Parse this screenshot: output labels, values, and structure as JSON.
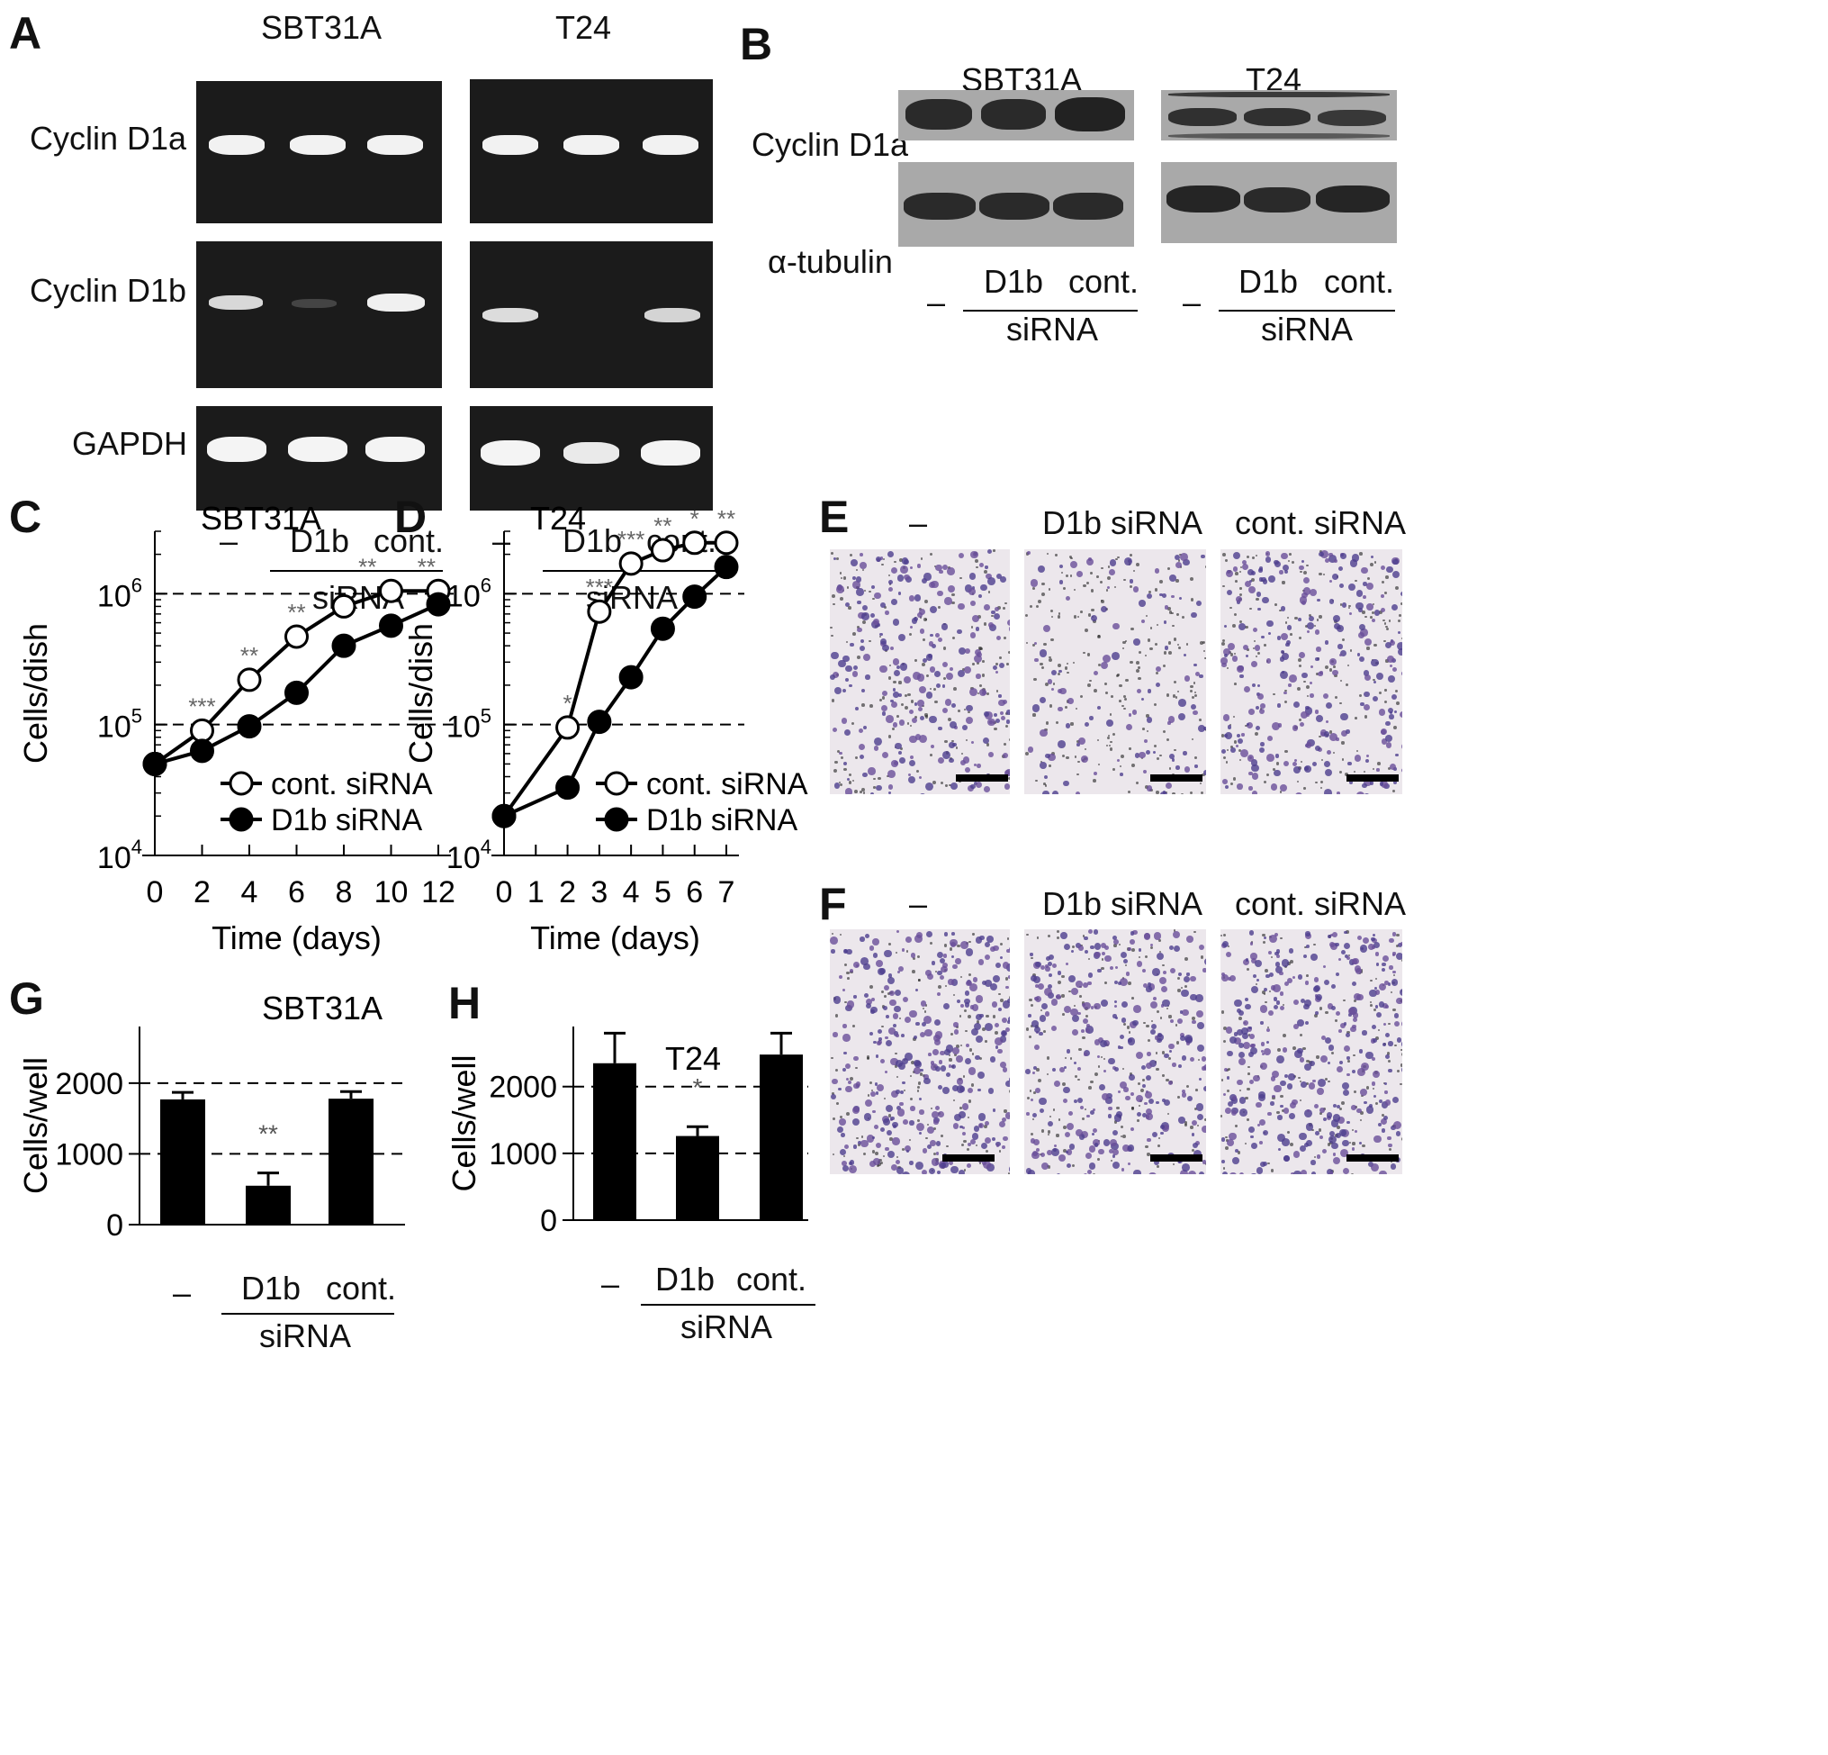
{
  "panels": {
    "A": "A",
    "B": "B",
    "C": "C",
    "D": "D",
    "E": "E",
    "F": "F",
    "G": "G",
    "H": "H"
  },
  "cell_lines": {
    "sbt": "SBT31A",
    "t24": "T24"
  },
  "gel_rows": {
    "d1a": "Cyclin D1a",
    "d1b": "Cyclin D1b",
    "gapdh": "GAPDH"
  },
  "blot_rows": {
    "d1a": "Cyclin D1a",
    "tub": "α-tubulin"
  },
  "lanes": {
    "none": "–",
    "d1b": "D1b",
    "cont": "cont.",
    "sirna": "siRNA"
  },
  "micro_labels": {
    "none": "–",
    "d1b": "D1b siRNA",
    "cont": "cont. siRNA"
  },
  "colors": {
    "band": "#f2f2f2",
    "gel_bg": "#1b1b1b",
    "blot_bg": "#a9a9a9",
    "blot_band": "#2a2a2a",
    "stain": "#4d3f8f",
    "stain_bg": "#ece7ec"
  },
  "chart_data": [
    {
      "panel": "C",
      "type": "line",
      "title": "SBT31A",
      "xlabel": "Time (days)",
      "ylabel": "Cells/dish",
      "yscale": "log",
      "ylim": [
        10000,
        3000000
      ],
      "xlim": [
        0,
        12
      ],
      "xticks": [
        0,
        2,
        4,
        6,
        8,
        10,
        12
      ],
      "yticks": [
        10000,
        100000,
        1000000
      ],
      "ytick_labels": [
        {
          "base": "10",
          "exp": "4"
        },
        {
          "base": "10",
          "exp": "5"
        },
        {
          "base": "10",
          "exp": "6"
        }
      ],
      "grid_y": [
        100000,
        1000000
      ],
      "legend": "bottom-right",
      "series": [
        {
          "name": "cont. siRNA",
          "marker": "open-circle",
          "x": [
            0,
            2,
            4,
            6,
            8,
            10,
            12
          ],
          "y": [
            50000,
            90000,
            220000,
            470000,
            800000,
            1050000,
            1050000
          ]
        },
        {
          "name": "D1b siRNA",
          "marker": "filled-circle",
          "x": [
            0,
            2,
            4,
            6,
            8,
            10,
            12
          ],
          "y": [
            50000,
            63000,
            97000,
            175000,
            400000,
            570000,
            830000
          ]
        }
      ],
      "annotations": [
        {
          "x": 2,
          "text": "***"
        },
        {
          "x": 4,
          "text": "**"
        },
        {
          "x": 6,
          "text": "**"
        },
        {
          "x": 9,
          "text": "**"
        },
        {
          "x": 11.5,
          "text": "**"
        }
      ]
    },
    {
      "panel": "D",
      "type": "line",
      "title": "T24",
      "xlabel": "Time (days)",
      "ylabel": "Cells/dish",
      "yscale": "log",
      "ylim": [
        10000,
        3000000
      ],
      "xlim": [
        0,
        7
      ],
      "xticks": [
        0,
        1,
        2,
        3,
        4,
        5,
        6,
        7
      ],
      "yticks": [
        10000,
        100000,
        1000000
      ],
      "ytick_labels": [
        {
          "base": "10",
          "exp": "4"
        },
        {
          "base": "10",
          "exp": "5"
        },
        {
          "base": "10",
          "exp": "6"
        }
      ],
      "grid_y": [
        100000,
        1000000
      ],
      "legend": "bottom-right",
      "series": [
        {
          "name": "cont. siRNA",
          "marker": "open-circle",
          "x": [
            0,
            2,
            3,
            4,
            5,
            6,
            7
          ],
          "y": [
            20000,
            95000,
            730000,
            1700000,
            2150000,
            2450000,
            2450000
          ]
        },
        {
          "name": "D1b siRNA",
          "marker": "filled-circle",
          "x": [
            0,
            2,
            3,
            4,
            5,
            6,
            7
          ],
          "y": [
            20000,
            33000,
            105000,
            230000,
            540000,
            950000,
            1600000
          ]
        }
      ],
      "annotations": [
        {
          "x": 2,
          "text": "*"
        },
        {
          "x": 3,
          "text": "***"
        },
        {
          "x": 4,
          "text": "***"
        },
        {
          "x": 5,
          "text": "**"
        },
        {
          "x": 6,
          "text": "*"
        },
        {
          "x": 7,
          "text": "**"
        }
      ]
    },
    {
      "panel": "G",
      "type": "bar",
      "title": "SBT31A",
      "ylabel": "Cells/well",
      "ylim": [
        0,
        2800
      ],
      "yticks": [
        0,
        1000,
        2000
      ],
      "grid_y": [
        1000,
        2000
      ],
      "categories": [
        "–",
        "D1b",
        "cont."
      ],
      "group_label": "siRNA",
      "values": [
        1770,
        550,
        1780
      ],
      "errors": [
        100,
        180,
        100
      ],
      "annotations": [
        {
          "category": 1,
          "text": "**"
        }
      ]
    },
    {
      "panel": "H",
      "type": "bar",
      "title": "T24",
      "ylabel": "Cells/well",
      "ylim": [
        0,
        2900
      ],
      "yticks": [
        0,
        1000,
        2000
      ],
      "grid_y": [
        1000,
        2000
      ],
      "categories": [
        "–",
        "D1b",
        "cont."
      ],
      "group_label": "siRNA",
      "values": [
        2350,
        1260,
        2480
      ],
      "errors": [
        450,
        140,
        320
      ],
      "annotations": [
        {
          "category": 1,
          "text": "*"
        }
      ]
    }
  ]
}
